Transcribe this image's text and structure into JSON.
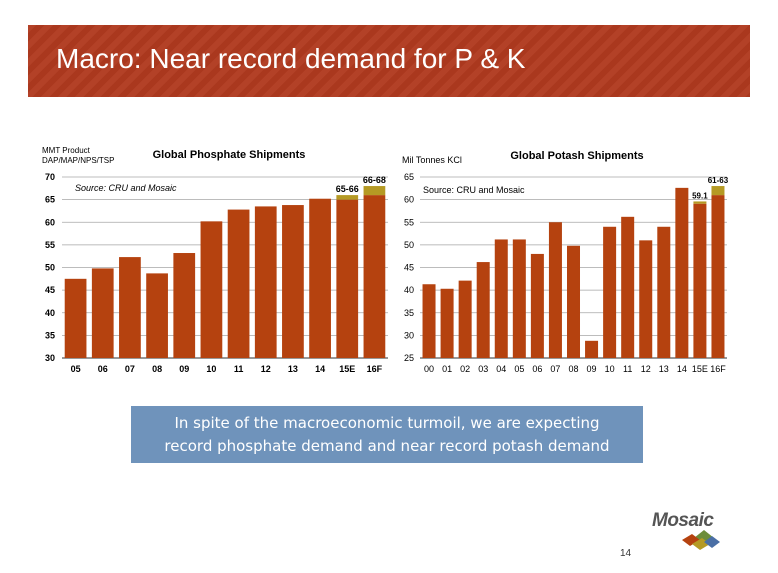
{
  "slide": {
    "title": "Macro: Near record demand for P & K",
    "callout_line1": "In spite of the macroeconomic turmoil, we are expecting",
    "callout_line2": "record phosphate demand and near record potash demand",
    "logo_text": "Mosaic",
    "page_number": "14"
  },
  "colors": {
    "title_bar": "#b03a1f",
    "bar": "#b5420f",
    "range": "#b59a24",
    "callout": "#6f93bb"
  },
  "chart_data": [
    {
      "type": "bar",
      "title": "Global Phosphate Shipments",
      "ylabel_line1": "MMT Product",
      "ylabel_line2": "DAP/MAP/NPS/TSP",
      "source": "Source: CRU and Mosaic",
      "categories": [
        "05",
        "06",
        "07",
        "08",
        "09",
        "10",
        "11",
        "12",
        "13",
        "14",
        "15E",
        "16F"
      ],
      "values": [
        47.5,
        49.8,
        52.3,
        48.7,
        53.2,
        60.2,
        62.8,
        63.5,
        63.8,
        65.2,
        65,
        66
      ],
      "range_tops": [
        null,
        null,
        null,
        null,
        null,
        null,
        null,
        null,
        null,
        null,
        66,
        68
      ],
      "labels": [
        null,
        null,
        null,
        null,
        null,
        null,
        null,
        null,
        null,
        null,
        "65-66",
        "66-68"
      ],
      "ylim": [
        30,
        70
      ],
      "yticks": [
        30,
        35,
        40,
        45,
        50,
        55,
        60,
        65,
        70
      ],
      "grid": true
    },
    {
      "type": "bar",
      "title": "Global Potash Shipments",
      "ylabel": "Mil Tonnes KCl",
      "source": "Source: CRU and Mosaic",
      "categories": [
        "00",
        "01",
        "02",
        "03",
        "04",
        "05",
        "06",
        "07",
        "08",
        "09",
        "10",
        "11",
        "12",
        "13",
        "14",
        "15E",
        "16F"
      ],
      "values": [
        41.3,
        40.3,
        42.1,
        46.2,
        51.2,
        51.2,
        48,
        55,
        49.8,
        28.8,
        54,
        56.2,
        51,
        54,
        62.6,
        59.1,
        61
      ],
      "range_tops": [
        null,
        null,
        null,
        null,
        null,
        null,
        null,
        null,
        null,
        null,
        null,
        null,
        null,
        null,
        null,
        59.6,
        63
      ],
      "labels": [
        null,
        null,
        null,
        null,
        null,
        null,
        null,
        null,
        null,
        null,
        null,
        null,
        null,
        null,
        null,
        "59.1",
        "61-63"
      ],
      "ylim": [
        25,
        65
      ],
      "yticks": [
        25,
        30,
        35,
        40,
        45,
        50,
        55,
        60,
        65
      ],
      "grid": true
    }
  ]
}
